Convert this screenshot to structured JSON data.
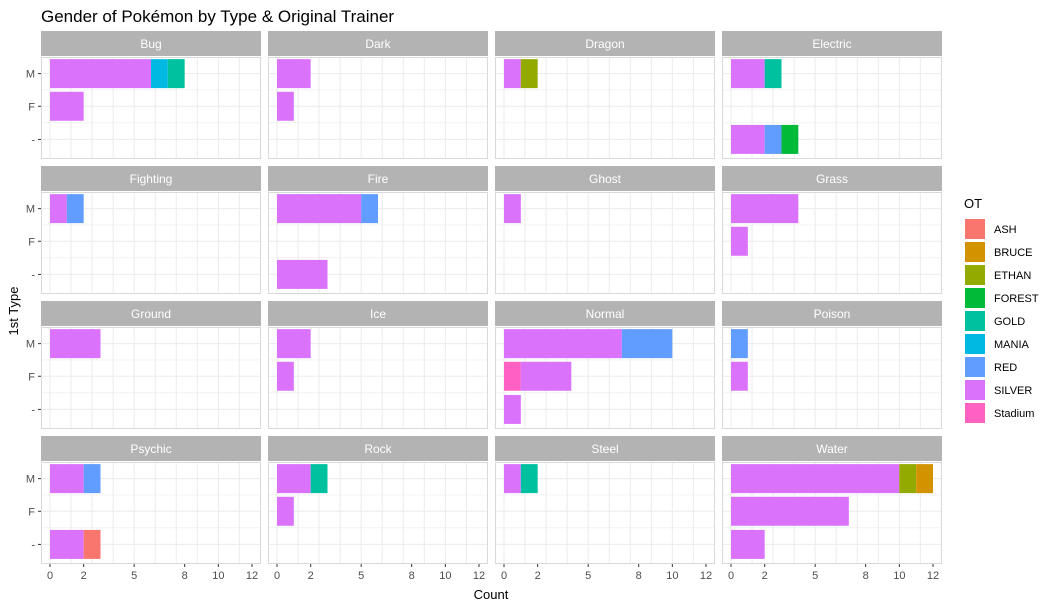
{
  "chart_data": {
    "type": "bar",
    "orientation": "horizontal",
    "stacked": true,
    "title": "Gender of Pokémon by Type & Original Trainer",
    "xlabel": "Count",
    "ylabel": "1st Type",
    "xlim": [
      0,
      12
    ],
    "x_ticks": [
      0,
      2,
      5,
      8,
      10,
      12
    ],
    "x_tick_labels": [
      "0",
      "2",
      "5",
      "8",
      "10",
      "12"
    ],
    "categories": [
      "M",
      "F",
      "-"
    ],
    "legend": {
      "title": "OT",
      "placement": "right",
      "entries": [
        {
          "name": "ASH",
          "color": "#F8766D"
        },
        {
          "name": "BRUCE",
          "color": "#D39200"
        },
        {
          "name": "ETHAN",
          "color": "#93AA00"
        },
        {
          "name": "FOREST",
          "color": "#00BA38"
        },
        {
          "name": "GOLD",
          "color": "#00C19F"
        },
        {
          "name": "MANIA",
          "color": "#00B9E3"
        },
        {
          "name": "RED",
          "color": "#619CFF"
        },
        {
          "name": "SILVER",
          "color": "#DB72FB"
        },
        {
          "name": "Stadium",
          "color": "#FF61C3"
        }
      ]
    },
    "grid": true,
    "panels": [
      {
        "type": "Bug",
        "bars": {
          "M": [
            [
              "SILVER",
              6
            ],
            [
              "MANIA",
              1
            ],
            [
              "GOLD",
              1
            ]
          ],
          "F": [
            [
              "SILVER",
              2
            ]
          ],
          "-": []
        }
      },
      {
        "type": "Dark",
        "bars": {
          "M": [
            [
              "SILVER",
              2
            ]
          ],
          "F": [
            [
              "SILVER",
              1
            ]
          ],
          "-": []
        }
      },
      {
        "type": "Dragon",
        "bars": {
          "M": [
            [
              "SILVER",
              1
            ],
            [
              "ETHAN",
              1
            ]
          ],
          "F": [],
          "-": []
        }
      },
      {
        "type": "Electric",
        "bars": {
          "M": [
            [
              "SILVER",
              2
            ],
            [
              "GOLD",
              1
            ]
          ],
          "F": [],
          "-": [
            [
              "SILVER",
              2
            ],
            [
              "RED",
              1
            ],
            [
              "FOREST",
              1
            ]
          ]
        }
      },
      {
        "type": "Fighting",
        "bars": {
          "M": [
            [
              "SILVER",
              1
            ],
            [
              "RED",
              1
            ]
          ],
          "F": [],
          "-": []
        }
      },
      {
        "type": "Fire",
        "bars": {
          "M": [
            [
              "SILVER",
              5
            ],
            [
              "RED",
              1
            ]
          ],
          "F": [],
          "-": [
            [
              "SILVER",
              3
            ]
          ]
        }
      },
      {
        "type": "Ghost",
        "bars": {
          "M": [
            [
              "SILVER",
              1
            ]
          ],
          "F": [],
          "-": []
        }
      },
      {
        "type": "Grass",
        "bars": {
          "M": [
            [
              "SILVER",
              4
            ]
          ],
          "F": [
            [
              "SILVER",
              1
            ]
          ],
          "-": []
        }
      },
      {
        "type": "Ground",
        "bars": {
          "M": [
            [
              "SILVER",
              3
            ]
          ],
          "F": [],
          "-": []
        }
      },
      {
        "type": "Ice",
        "bars": {
          "M": [
            [
              "SILVER",
              2
            ]
          ],
          "F": [
            [
              "SILVER",
              1
            ]
          ],
          "-": []
        }
      },
      {
        "type": "Normal",
        "bars": {
          "M": [
            [
              "SILVER",
              7
            ],
            [
              "RED",
              3
            ]
          ],
          "F": [
            [
              "Stadium",
              1
            ],
            [
              "SILVER",
              3
            ]
          ],
          "-": [
            [
              "SILVER",
              1
            ]
          ]
        }
      },
      {
        "type": "Poison",
        "bars": {
          "M": [
            [
              "RED",
              1
            ]
          ],
          "F": [
            [
              "SILVER",
              1
            ]
          ],
          "-": []
        }
      },
      {
        "type": "Psychic",
        "bars": {
          "M": [
            [
              "SILVER",
              2
            ],
            [
              "RED",
              1
            ]
          ],
          "F": [],
          "-": [
            [
              "SILVER",
              2
            ],
            [
              "ASH",
              1
            ]
          ]
        }
      },
      {
        "type": "Rock",
        "bars": {
          "M": [
            [
              "SILVER",
              2
            ],
            [
              "GOLD",
              1
            ]
          ],
          "F": [
            [
              "SILVER",
              1
            ]
          ],
          "-": []
        }
      },
      {
        "type": "Steel",
        "bars": {
          "M": [
            [
              "SILVER",
              1
            ],
            [
              "GOLD",
              1
            ]
          ],
          "F": [],
          "-": []
        }
      },
      {
        "type": "Water",
        "bars": {
          "M": [
            [
              "SILVER",
              10
            ],
            [
              "ETHAN",
              1
            ],
            [
              "BRUCE",
              1
            ]
          ],
          "F": [
            [
              "SILVER",
              7
            ]
          ],
          "-": [
            [
              "SILVER",
              2
            ]
          ]
        }
      }
    ],
    "colors": {
      "strip_bg": "#B3B3B3",
      "panel_border": "#D9D9D9",
      "grid_line": "#EBEBEB"
    }
  }
}
